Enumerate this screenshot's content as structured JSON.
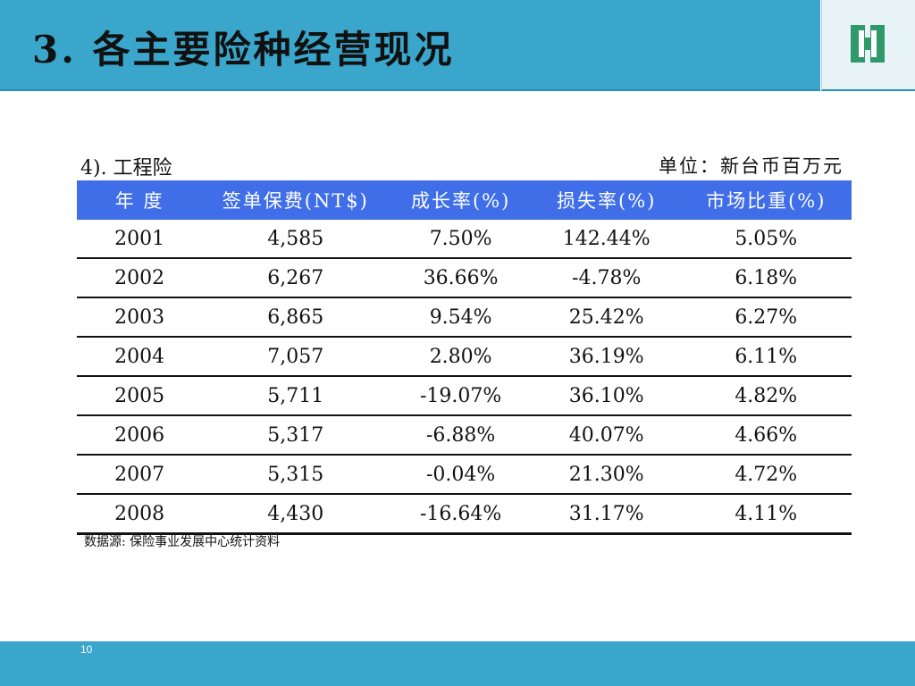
{
  "header": {
    "title": "3. 各主要险种经营现况"
  },
  "section": {
    "subtitle": "4). 工程险",
    "unit": "单位：新台币百万元"
  },
  "table": {
    "columns": [
      "年 度",
      "签单保费(NT$)",
      "成长率(%)",
      "损失率(%)",
      "市场比重(%)"
    ],
    "rows": [
      [
        "2001",
        "4,585",
        "7.50%",
        "142.44%",
        "5.05%"
      ],
      [
        "2002",
        "6,267",
        "36.66%",
        "-4.78%",
        "6.18%"
      ],
      [
        "2003",
        "6,865",
        "9.54%",
        "25.42%",
        "6.27%"
      ],
      [
        "2004",
        "7,057",
        "2.80%",
        "36.19%",
        "6.11%"
      ],
      [
        "2005",
        "5,711",
        "-19.07%",
        "36.10%",
        "4.82%"
      ],
      [
        "2006",
        "5,317",
        "-6.88%",
        "40.07%",
        "4.66%"
      ],
      [
        "2007",
        "5,315",
        "-0.04%",
        "21.30%",
        "4.72%"
      ],
      [
        "2008",
        "4,430",
        "-16.64%",
        "31.17%",
        "4.11%"
      ]
    ]
  },
  "source": "数据源: 保险事业发展中心统计资料",
  "footer": {
    "page_number": "10"
  },
  "colors": {
    "header_bg": "#3aa6cb",
    "table_header_bg": "#3f6ee8",
    "logo_green": "#2e9a6a"
  },
  "icons": {
    "logo": "company-logo-icon"
  }
}
